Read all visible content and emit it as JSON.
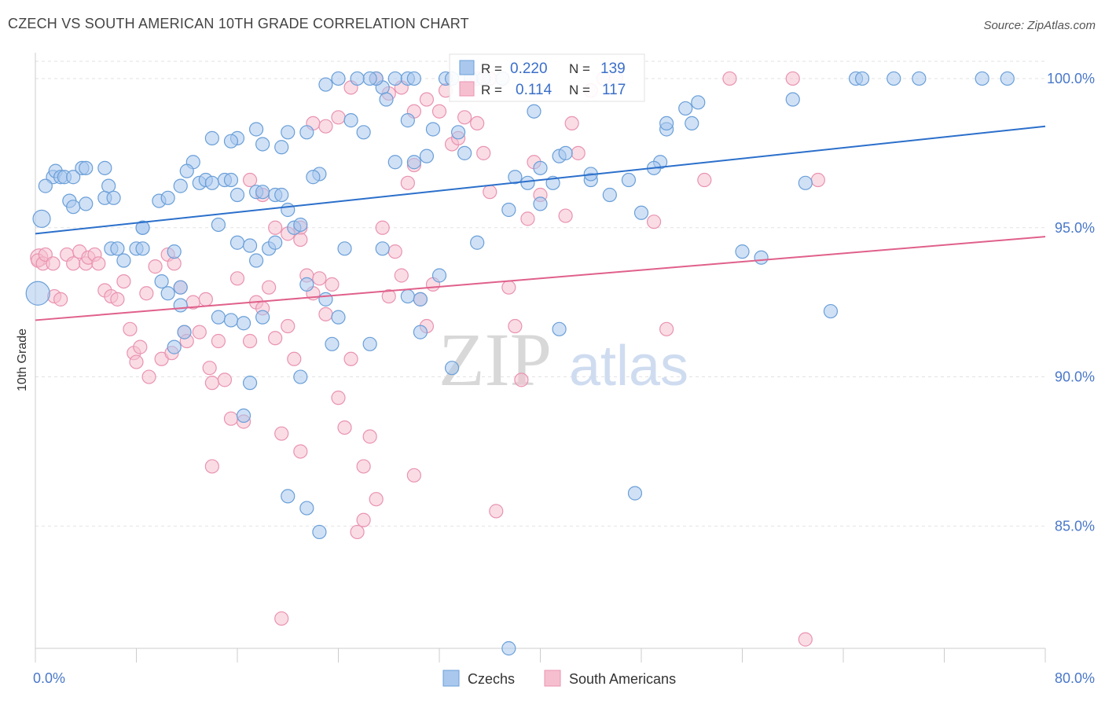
{
  "title": "CZECH VS SOUTH AMERICAN 10TH GRADE CORRELATION CHART",
  "source": "Source: ZipAtlas.com",
  "watermark": {
    "part1": "ZIP",
    "part2": "atlas"
  },
  "colors": {
    "czech_fill": "#aac8ee",
    "czech_stroke": "#6a9fd8",
    "czech_line": "#2b6fcb",
    "sa_fill": "#f6bfd0",
    "sa_stroke": "#e993b0",
    "sa_line": "#e0608a",
    "tick_label": "#4a78c9",
    "grid": "#e2e2e2",
    "axis": "#cccccc"
  },
  "stats": [
    {
      "r_label": "R =",
      "r_value": "0.220",
      "n_label": "N =",
      "n_value": "139"
    },
    {
      "r_label": "R =",
      "r_value": "0.114",
      "n_label": "N =",
      "n_value": "117"
    }
  ],
  "chart_data": {
    "type": "scatter",
    "title": "CZECH VS SOUTH AMERICAN 10TH GRADE CORRELATION CHART",
    "xlabel": "",
    "ylabel": "10th Grade",
    "xlim": [
      0,
      80
    ],
    "ylim": [
      80.9,
      101.0
    ],
    "x_tick_labels": [
      "0.0%",
      "80.0%"
    ],
    "y_ticks": [
      85,
      90,
      95,
      100
    ],
    "y_tick_labels": [
      "85.0%",
      "90.0%",
      "95.0%",
      "100.0%"
    ],
    "grid": "horizontal dashed",
    "legend_position": "bottom-center",
    "series": [
      {
        "name": "Czechs",
        "r": 0.22,
        "n": 139,
        "trend": {
          "x": [
            0,
            80
          ],
          "y": [
            94.8,
            98.4
          ]
        },
        "points": [
          [
            0.5,
            95.3
          ],
          [
            0.2,
            92.8
          ],
          [
            1.4,
            96.7
          ],
          [
            1.6,
            96.9
          ],
          [
            2.0,
            96.7
          ],
          [
            2.3,
            96.7
          ],
          [
            3.0,
            96.7
          ],
          [
            3.7,
            97.0
          ],
          [
            4.0,
            97.0
          ],
          [
            5.5,
            97.0
          ],
          [
            0.8,
            96.4
          ],
          [
            2.7,
            95.9
          ],
          [
            3.0,
            95.7
          ],
          [
            4.0,
            95.8
          ],
          [
            5.5,
            96.0
          ],
          [
            5.8,
            96.4
          ],
          [
            6.2,
            96.0
          ],
          [
            8.5,
            95.0
          ],
          [
            8.5,
            95.0
          ],
          [
            9.8,
            95.9
          ],
          [
            10.5,
            96.0
          ],
          [
            11.5,
            96.4
          ],
          [
            13.0,
            96.5
          ],
          [
            13.5,
            96.6
          ],
          [
            14.0,
            96.5
          ],
          [
            15.0,
            96.6
          ],
          [
            15.5,
            96.6
          ],
          [
            16.0,
            96.1
          ],
          [
            17.5,
            96.2
          ],
          [
            18.0,
            96.2
          ],
          [
            19.0,
            96.1
          ],
          [
            19.5,
            96.1
          ],
          [
            20.0,
            95.6
          ],
          [
            20.5,
            95.0
          ],
          [
            21.0,
            95.1
          ],
          [
            14.5,
            95.1
          ],
          [
            16.0,
            94.5
          ],
          [
            17.0,
            94.4
          ],
          [
            17.5,
            93.9
          ],
          [
            18.5,
            94.3
          ],
          [
            19.0,
            94.5
          ],
          [
            21.5,
            93.1
          ],
          [
            6.0,
            94.3
          ],
          [
            6.5,
            94.3
          ],
          [
            7.0,
            93.9
          ],
          [
            8.0,
            94.3
          ],
          [
            8.5,
            94.3
          ],
          [
            10.0,
            93.2
          ],
          [
            11.0,
            94.2
          ],
          [
            10.5,
            92.8
          ],
          [
            11.5,
            93.0
          ],
          [
            11.8,
            91.5
          ],
          [
            11.0,
            91.0
          ],
          [
            11.5,
            92.4
          ],
          [
            14.5,
            92.0
          ],
          [
            15.5,
            91.9
          ],
          [
            16.5,
            91.8
          ],
          [
            17.0,
            89.8
          ],
          [
            16.5,
            88.7
          ],
          [
            18.0,
            92.0
          ],
          [
            21.0,
            90.0
          ],
          [
            23.0,
            92.6
          ],
          [
            24.0,
            92.0
          ],
          [
            23.5,
            91.1
          ],
          [
            24.5,
            94.3
          ],
          [
            26.5,
            91.1
          ],
          [
            27.5,
            94.3
          ],
          [
            29.5,
            92.7
          ],
          [
            30.5,
            92.6
          ],
          [
            32.0,
            93.4
          ],
          [
            33.0,
            90.3
          ],
          [
            35.0,
            94.5
          ],
          [
            37.5,
            95.6
          ],
          [
            38.0,
            96.7
          ],
          [
            39.0,
            96.5
          ],
          [
            40.0,
            95.8
          ],
          [
            41.0,
            96.5
          ],
          [
            41.5,
            97.4
          ],
          [
            42.0,
            97.5
          ],
          [
            44.0,
            96.6
          ],
          [
            45.5,
            96.1
          ],
          [
            47.0,
            96.6
          ],
          [
            48.0,
            95.5
          ],
          [
            49.5,
            97.2
          ],
          [
            50.0,
            98.3
          ],
          [
            51.5,
            99.0
          ],
          [
            52.0,
            98.5
          ],
          [
            52.5,
            99.2
          ],
          [
            56.0,
            94.2
          ],
          [
            57.5,
            94.0
          ],
          [
            60.0,
            99.3
          ],
          [
            61.0,
            96.5
          ],
          [
            63.0,
            92.2
          ],
          [
            65.0,
            100.0
          ],
          [
            65.5,
            100.0
          ],
          [
            68.0,
            100.0
          ],
          [
            70.0,
            100.0
          ],
          [
            75.0,
            100.0
          ],
          [
            77.0,
            100.0
          ],
          [
            50.0,
            98.5
          ],
          [
            44.0,
            96.8
          ],
          [
            41.5,
            91.6
          ],
          [
            40.0,
            97.0
          ],
          [
            39.5,
            98.9
          ],
          [
            37.0,
            100.0
          ],
          [
            35.5,
            100.0
          ],
          [
            34.0,
            97.5
          ],
          [
            33.5,
            98.2
          ],
          [
            32.5,
            100.0
          ],
          [
            31.5,
            98.3
          ],
          [
            31.0,
            97.4
          ],
          [
            30.0,
            97.2
          ],
          [
            29.5,
            98.6
          ],
          [
            28.5,
            97.2
          ],
          [
            27.5,
            99.7
          ],
          [
            27.0,
            100.0
          ],
          [
            26.5,
            100.0
          ],
          [
            25.5,
            100.0
          ],
          [
            24.0,
            100.0
          ],
          [
            23.0,
            99.8
          ],
          [
            22.5,
            96.8
          ],
          [
            22.0,
            96.7
          ],
          [
            21.5,
            98.2
          ],
          [
            20.0,
            98.2
          ],
          [
            19.5,
            97.7
          ],
          [
            18.0,
            97.8
          ],
          [
            17.5,
            98.3
          ],
          [
            16.0,
            98.0
          ],
          [
            15.5,
            97.9
          ],
          [
            14.0,
            98.0
          ],
          [
            12.5,
            97.2
          ],
          [
            12.0,
            96.9
          ],
          [
            25.0,
            98.6
          ],
          [
            26.0,
            98.2
          ],
          [
            27.8,
            99.3
          ],
          [
            28.5,
            100.0
          ],
          [
            29.5,
            100.0
          ],
          [
            30.0,
            100.0
          ],
          [
            33.0,
            100.0
          ],
          [
            34.5,
            100.0
          ],
          [
            49.0,
            97.0
          ],
          [
            20.0,
            86.0
          ],
          [
            21.5,
            85.6
          ],
          [
            22.5,
            84.8
          ],
          [
            37.5,
            80.9
          ],
          [
            47.5,
            86.1
          ],
          [
            30.5,
            91.5
          ]
        ]
      },
      {
        "name": "South Americans",
        "r": 0.114,
        "n": 117,
        "trend": {
          "x": [
            0,
            80
          ],
          "y": [
            91.9,
            94.7
          ]
        },
        "points": [
          [
            0.3,
            94.0
          ],
          [
            0.2,
            93.9
          ],
          [
            0.6,
            93.8
          ],
          [
            0.8,
            94.1
          ],
          [
            1.4,
            93.8
          ],
          [
            1.5,
            92.7
          ],
          [
            2.0,
            92.6
          ],
          [
            2.5,
            94.1
          ],
          [
            3.0,
            93.8
          ],
          [
            3.5,
            94.2
          ],
          [
            4.0,
            93.8
          ],
          [
            4.2,
            94.0
          ],
          [
            4.7,
            94.1
          ],
          [
            5.0,
            93.8
          ],
          [
            5.5,
            92.9
          ],
          [
            6.0,
            92.7
          ],
          [
            6.5,
            92.6
          ],
          [
            7.0,
            93.2
          ],
          [
            7.5,
            91.6
          ],
          [
            7.8,
            90.8
          ],
          [
            8.0,
            90.5
          ],
          [
            8.3,
            91.0
          ],
          [
            8.8,
            92.8
          ],
          [
            9.0,
            90.0
          ],
          [
            9.5,
            93.7
          ],
          [
            10.0,
            90.6
          ],
          [
            10.5,
            94.1
          ],
          [
            10.8,
            90.8
          ],
          [
            11.0,
            93.8
          ],
          [
            11.5,
            93.0
          ],
          [
            11.8,
            91.5
          ],
          [
            12.0,
            91.2
          ],
          [
            12.5,
            92.5
          ],
          [
            13.0,
            91.5
          ],
          [
            13.5,
            92.6
          ],
          [
            13.8,
            90.3
          ],
          [
            14.0,
            89.8
          ],
          [
            14.5,
            91.2
          ],
          [
            15.0,
            89.9
          ],
          [
            15.5,
            88.6
          ],
          [
            16.0,
            93.3
          ],
          [
            16.5,
            88.5
          ],
          [
            17.0,
            91.2
          ],
          [
            17.5,
            92.5
          ],
          [
            18.0,
            92.3
          ],
          [
            18.5,
            93.0
          ],
          [
            19.0,
            91.3
          ],
          [
            19.5,
            88.1
          ],
          [
            20.0,
            91.7
          ],
          [
            20.5,
            90.6
          ],
          [
            21.0,
            95.0
          ],
          [
            21.5,
            93.4
          ],
          [
            22.0,
            92.8
          ],
          [
            22.5,
            93.3
          ],
          [
            23.0,
            92.1
          ],
          [
            23.5,
            93.1
          ],
          [
            24.0,
            89.3
          ],
          [
            24.5,
            88.3
          ],
          [
            25.0,
            90.6
          ],
          [
            25.5,
            84.8
          ],
          [
            26.0,
            85.2
          ],
          [
            26.5,
            88.0
          ],
          [
            27.0,
            85.9
          ],
          [
            27.5,
            95.0
          ],
          [
            28.0,
            92.7
          ],
          [
            28.5,
            94.2
          ],
          [
            29.0,
            93.4
          ],
          [
            29.5,
            96.5
          ],
          [
            30.0,
            97.1
          ],
          [
            30.5,
            92.6
          ],
          [
            31.0,
            91.7
          ],
          [
            31.5,
            93.1
          ],
          [
            32.0,
            98.9
          ],
          [
            32.5,
            99.6
          ],
          [
            33.0,
            97.8
          ],
          [
            33.5,
            98.0
          ],
          [
            34.0,
            98.7
          ],
          [
            35.0,
            98.5
          ],
          [
            35.5,
            97.5
          ],
          [
            36.0,
            96.2
          ],
          [
            37.5,
            93.0
          ],
          [
            38.0,
            91.7
          ],
          [
            38.5,
            89.9
          ],
          [
            39.0,
            95.3
          ],
          [
            39.5,
            97.2
          ],
          [
            40.0,
            96.1
          ],
          [
            42.0,
            95.4
          ],
          [
            42.5,
            98.5
          ],
          [
            43.0,
            97.5
          ],
          [
            44.0,
            99.6
          ],
          [
            45.0,
            100.0
          ],
          [
            46.0,
            100.0
          ],
          [
            49.0,
            95.2
          ],
          [
            50.0,
            91.6
          ],
          [
            53.0,
            96.6
          ],
          [
            55.0,
            100.0
          ],
          [
            60.0,
            100.0
          ],
          [
            61.0,
            81.2
          ],
          [
            62.0,
            96.6
          ],
          [
            35.0,
            100.0
          ],
          [
            36.0,
            100.0
          ],
          [
            27.0,
            100.0
          ],
          [
            28.0,
            99.5
          ],
          [
            29.0,
            99.7
          ],
          [
            30.0,
            98.9
          ],
          [
            31.0,
            99.3
          ],
          [
            22.0,
            98.5
          ],
          [
            23.0,
            98.4
          ],
          [
            24.0,
            98.7
          ],
          [
            25.0,
            99.7
          ],
          [
            17.0,
            96.6
          ],
          [
            18.0,
            96.1
          ],
          [
            19.0,
            95.0
          ],
          [
            20.0,
            94.8
          ],
          [
            21.0,
            94.6
          ],
          [
            19.5,
            81.9
          ],
          [
            21.0,
            87.5
          ],
          [
            14.0,
            87.0
          ],
          [
            36.5,
            85.5
          ],
          [
            26.0,
            87.0
          ],
          [
            30.0,
            86.7
          ]
        ]
      }
    ]
  },
  "legend": [
    {
      "label": "Czechs"
    },
    {
      "label": "South Americans"
    }
  ]
}
